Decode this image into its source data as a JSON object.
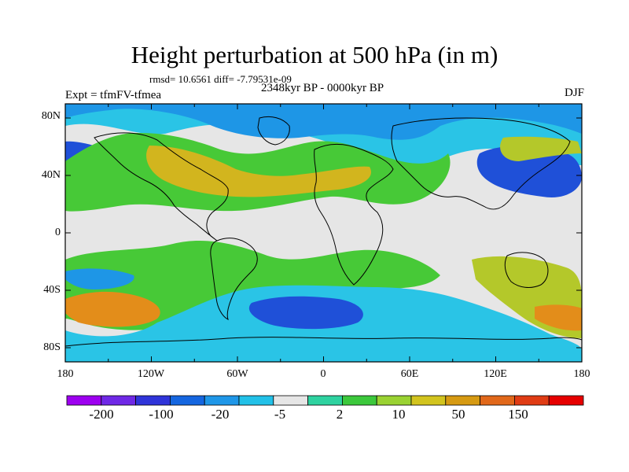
{
  "title": "Height perturbation at 500 hPa (in m)",
  "stats": "rmsd= 10.6561 diff= -7.79531e-09",
  "period": "2348kyr BP - 0000kyr BP",
  "experiment": "Expt = tfmFV-tfmea",
  "season": "DJF",
  "lat_labels": [
    "80N",
    "40N",
    "0",
    "40S",
    "80S"
  ],
  "lon_labels": [
    "180",
    "120W",
    "60W",
    "0",
    "60E",
    "120E",
    "180"
  ],
  "colorbar_labels": [
    "-200",
    "-100",
    "-20",
    "-5",
    "2",
    "10",
    "50",
    "150"
  ],
  "colorbar_colors": [
    "#9d00f0",
    "#6f28e6",
    "#2f34d9",
    "#1566e0",
    "#1f97e8",
    "#22c1e8",
    "#e6e6e6",
    "#2ed2a0",
    "#3cc83c",
    "#9ad232",
    "#d2c41e",
    "#d69a12",
    "#e1681a",
    "#e03c14",
    "#e60000"
  ],
  "fill_colors": {
    "strong_negative": "#1f50d8",
    "mid_negative": "#1e96e6",
    "weak_negative": "#2ac4e6",
    "neutral": "#e6e6e6",
    "weak_positive": "#2fd596",
    "mid_positive": "#47c937",
    "strong_positive": "#b4c82a",
    "peak_positive": "#d2b51e",
    "max_positive": "#e38d1a"
  }
}
